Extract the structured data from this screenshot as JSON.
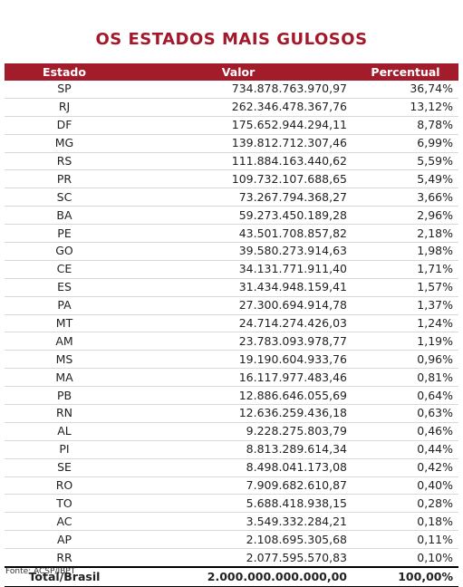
{
  "title": "OS ESTADOS MAIS GULOSOS",
  "table": {
    "header": [
      "Estado",
      "Valor",
      "Percentual"
    ],
    "rows": [
      [
        "SP",
        "734.878.763.970,97",
        "36,74%"
      ],
      [
        "RJ",
        "262.346.478.367,76",
        "13,12%"
      ],
      [
        "DF",
        "175.652.944.294,11",
        "8,78%"
      ],
      [
        "MG",
        "139.812.712.307,46",
        "6,99%"
      ],
      [
        "RS",
        "111.884.163.440,62",
        "5,59%"
      ],
      [
        "PR",
        "109.732.107.688,65",
        "5,49%"
      ],
      [
        "SC",
        "73.267.794.368,27",
        "3,66%"
      ],
      [
        "BA",
        "59.273.450.189,28",
        "2,96%"
      ],
      [
        "PE",
        "43.501.708.857,82",
        "2,18%"
      ],
      [
        "GO",
        "39.580.273.914,63",
        "1,98%"
      ],
      [
        "CE",
        "34.131.771.911,40",
        "1,71%"
      ],
      [
        "ES",
        "31.434.948.159,41",
        "1,57%"
      ],
      [
        "PA",
        "27.300.694.914,78",
        "1,37%"
      ],
      [
        "MT",
        "24.714.274.426,03",
        "1,24%"
      ],
      [
        "AM",
        "23.783.093.978,77",
        "1,19%"
      ],
      [
        "MS",
        "19.190.604.933,76",
        "0,96%"
      ],
      [
        "MA",
        "16.117.977.483,46",
        "0,81%"
      ],
      [
        "PB",
        "12.886.646.055,69",
        "0,64%"
      ],
      [
        "RN",
        "12.636.259.436,18",
        "0,63%"
      ],
      [
        "AL",
        "9.228.275.803,79",
        "0,46%"
      ],
      [
        "PI",
        "8.813.289.614,34",
        "0,44%"
      ],
      [
        "SE",
        "8.498.041.173,08",
        "0,42%"
      ],
      [
        "RO",
        "7.909.682.610,87",
        "0,40%"
      ],
      [
        "TO",
        "5.688.418.938,15",
        "0,28%"
      ],
      [
        "AC",
        "3.549.332.284,21",
        "0,18%"
      ],
      [
        "AP",
        "2.108.695.305,68",
        "0,11%"
      ],
      [
        "RR",
        "2.077.595.570,83",
        "0,10%"
      ]
    ],
    "total": [
      "Total/Brasil",
      "2.000.000.000.000,00",
      "100,00%"
    ]
  },
  "source": "Fonte: ACSP/IBPT"
}
